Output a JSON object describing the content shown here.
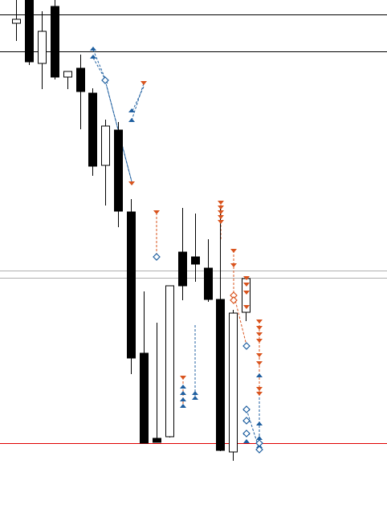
{
  "colors": {
    "background": "#ffffff",
    "bull_body": "#ffffff",
    "bear_body": "#000000",
    "outline": "#000000",
    "buy_marker": "#1f5fa0",
    "sell_marker": "#d9541e",
    "support_line": "#e00000",
    "gray_line": "#b0b0b0"
  },
  "chart_data": {
    "type": "candlestick",
    "title": "",
    "xlabel": "",
    "ylabel": "",
    "candles": [
      {
        "o": 620,
        "h": 650,
        "l": 598,
        "c": 625
      },
      {
        "o": 650,
        "h": 659,
        "l": 568,
        "c": 572
      },
      {
        "o": 570,
        "h": 635,
        "l": 538,
        "c": 610
      },
      {
        "o": 641,
        "h": 651,
        "l": 550,
        "c": 553
      },
      {
        "o": 553,
        "h": 559,
        "l": 538,
        "c": 560
      },
      {
        "o": 564,
        "h": 581,
        "l": 488,
        "c": 535
      },
      {
        "o": 533,
        "h": 539,
        "l": 430,
        "c": 442
      },
      {
        "o": 443,
        "h": 500,
        "l": 393,
        "c": 492
      },
      {
        "o": 487,
        "h": 497,
        "l": 366,
        "c": 386
      },
      {
        "o": 385,
        "h": 401,
        "l": 183,
        "c": 203
      },
      {
        "o": 209,
        "h": 286,
        "l": 97,
        "c": 97
      },
      {
        "o": 103,
        "h": 247,
        "l": 102,
        "c": 98
      },
      {
        "o": 105,
        "h": 291,
        "l": 104,
        "c": 293
      },
      {
        "o": 335,
        "h": 390,
        "l": 275,
        "c": 293
      },
      {
        "o": 329,
        "h": 383,
        "l": 298,
        "c": 320
      },
      {
        "o": 315,
        "h": 351,
        "l": 273,
        "c": 276
      },
      {
        "o": 276,
        "h": 392,
        "l": 87,
        "c": 88
      },
      {
        "o": 86,
        "h": 263,
        "l": 75,
        "c": 259
      },
      {
        "o": 260,
        "h": 305,
        "l": 249,
        "c": 302
      }
    ],
    "horizontal_lines": [
      {
        "value": 631,
        "color": "#000000"
      },
      {
        "value": 585,
        "color": "#000000"
      },
      {
        "value": 312,
        "color": "#b0b0b0"
      },
      {
        "value": 303,
        "color": "#b0b0b0"
      },
      {
        "value": 97,
        "color": "#e00000"
      }
    ],
    "y_domain": [
      0,
      656
    ]
  }
}
